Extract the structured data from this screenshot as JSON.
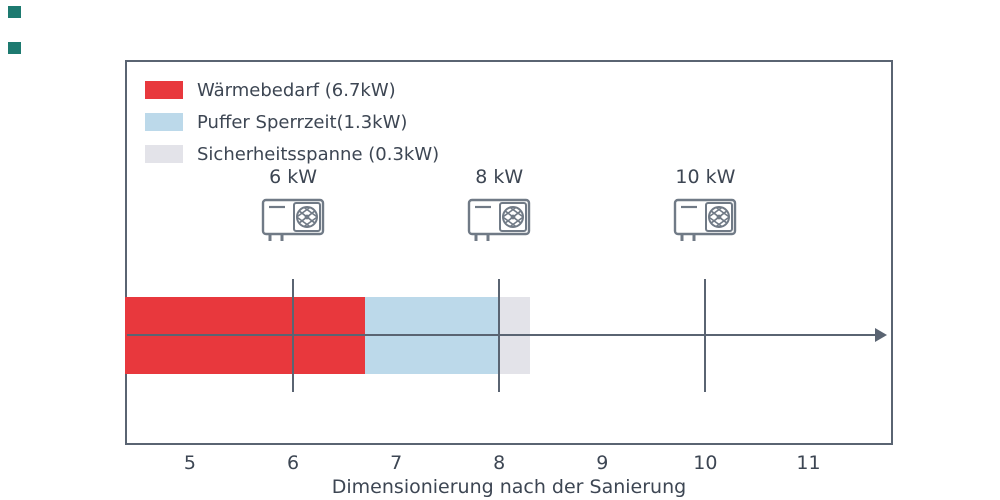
{
  "page": {
    "background": "#ffffff",
    "corner_marker_color": "#1d7a70"
  },
  "legend": {
    "items": [
      {
        "label": "Wärmebedarf (6.7kW)",
        "color": "#e8383d"
      },
      {
        "label": "Puffer Sperrzeit(1.3kW)",
        "color": "#bcd9ea"
      },
      {
        "label": "Sicherheitsspanne (0.3kW)",
        "color": "#e3e3e9"
      }
    ]
  },
  "chart_data": {
    "type": "bar",
    "orientation": "horizontal",
    "title": "",
    "xlabel": "Dimensionierung nach der Sanierung",
    "ylabel": "",
    "xlim": [
      4.37,
      11.82
    ],
    "xticks": [
      5,
      6,
      7,
      8,
      9,
      10,
      11
    ],
    "grid": false,
    "legend_position": "upper left",
    "axis_color": "#5a6472",
    "icon_color": "#707a86",
    "series": [
      {
        "name": "Wärmebedarf",
        "value_kw": 6.7,
        "start": 4.37,
        "end": 6.7,
        "color": "#e8383d"
      },
      {
        "name": "Puffer Sperrzeit",
        "value_kw": 1.3,
        "start": 6.7,
        "end": 8.0,
        "color": "#bcd9ea"
      },
      {
        "name": "Sicherheitsspanne",
        "value_kw": 0.3,
        "start": 8.0,
        "end": 8.3,
        "color": "#e3e3e9"
      }
    ],
    "stack_total_kw": 8.3,
    "markers": [
      {
        "x": 6,
        "label": "6 kW",
        "icon": "heat-pump-icon"
      },
      {
        "x": 8,
        "label": "8 kW",
        "icon": "heat-pump-icon"
      },
      {
        "x": 10,
        "label": "10 kW",
        "icon": "heat-pump-icon"
      }
    ]
  }
}
